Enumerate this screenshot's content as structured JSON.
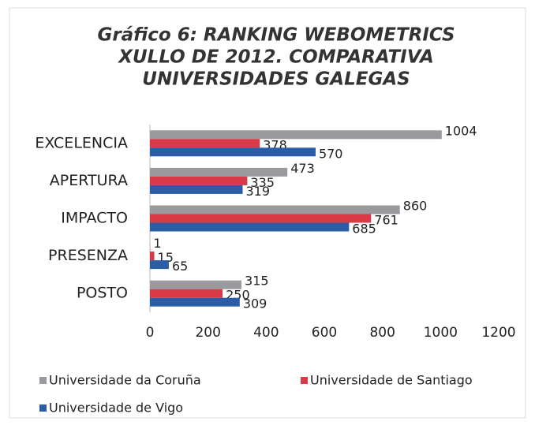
{
  "chart_data": {
    "type": "hbar",
    "title": [
      "Gráfico 6: RANKING WEBOMETRICS",
      "XULLO DE 2012. COMPARATIVA",
      "UNIVERSIDADES GALEGAS"
    ],
    "categories": [
      "EXCELENCIA",
      "APERTURA",
      "IMPACTO",
      "PRESENZA",
      "POSTO"
    ],
    "series": [
      {
        "name": "Universidade da Coruña",
        "color": "#9a9a9e",
        "values": [
          1004,
          473,
          860,
          1,
          315
        ]
      },
      {
        "name": "Universidade de Santiago",
        "color": "#d83a48",
        "values": [
          378,
          335,
          761,
          15,
          250
        ]
      },
      {
        "name": "Universidade de Vigo",
        "color": "#2a5da6",
        "values": [
          570,
          319,
          685,
          65,
          309
        ]
      }
    ],
    "xlim": [
      0,
      1200
    ],
    "xticks": [
      0,
      200,
      400,
      600,
      800,
      1000,
      1200
    ]
  }
}
